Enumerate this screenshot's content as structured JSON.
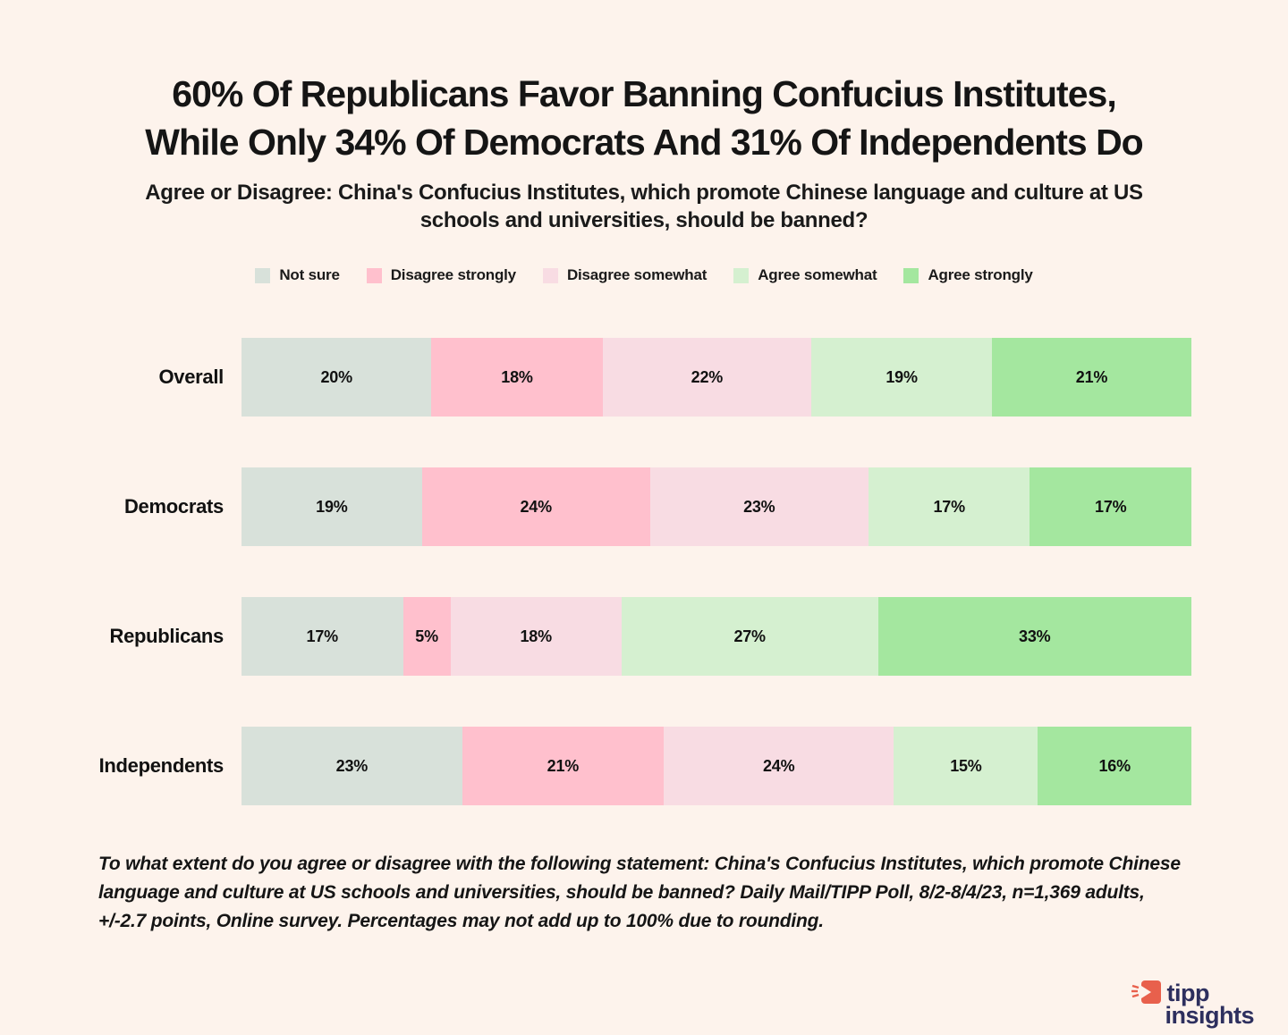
{
  "background_color": "#fdf3ec",
  "title": {
    "line1": "60% Of Republicans Favor Banning Confucius Institutes,",
    "line2": "While Only 34% Of Democrats And 31% Of Independents Do"
  },
  "subtitle": "Agree or Disagree: China's Confucius Institutes, which promote Chinese language and culture at US schools and universities, should be banned?",
  "chart_data": {
    "type": "bar",
    "orientation": "horizontal",
    "stacked": true,
    "normalized_to_100": true,
    "value_suffix": "%",
    "legend_position": "top",
    "categories": [
      "Overall",
      "Democrats",
      "Republicans",
      "Independents"
    ],
    "series": [
      {
        "name": "Not sure",
        "color": "#d8e1da",
        "values": [
          20,
          19,
          17,
          23
        ]
      },
      {
        "name": "Disagree strongly",
        "color": "#ffc0cd",
        "values": [
          18,
          24,
          5,
          21
        ]
      },
      {
        "name": "Disagree somewhat",
        "color": "#f8dce3",
        "values": [
          22,
          23,
          18,
          24
        ]
      },
      {
        "name": "Agree somewhat",
        "color": "#d5f0d0",
        "values": [
          19,
          17,
          27,
          15
        ]
      },
      {
        "name": "Agree strongly",
        "color": "#a4e79f",
        "values": [
          21,
          17,
          33,
          16
        ]
      }
    ]
  },
  "footnote": "To what extent do you agree or disagree with the following statement: China's Confucius Institutes, which promote Chinese language and culture at US schools and universities, should be banned? Daily Mail/TIPP Poll, 8/2-8/4/23, n=1,369 adults, +/-2.7 points, Online survey.  Percentages may not add up to 100% due to rounding.",
  "logo": {
    "word1": "tipp",
    "word2": "insights",
    "icon_color": "#e8604c",
    "text_color": "#2d2f5e"
  }
}
